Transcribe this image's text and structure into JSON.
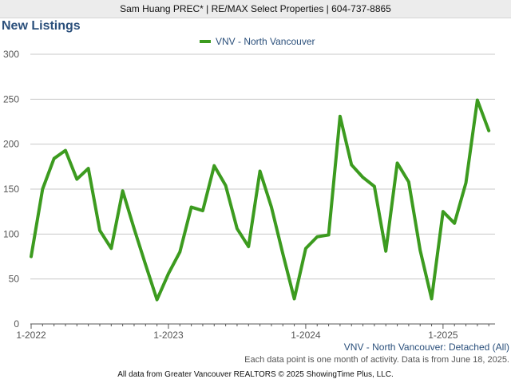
{
  "header": {
    "agent_line": "Sam Huang PREC* | RE/MAX Select Properties | 604-737-8865"
  },
  "chart_data": {
    "type": "line",
    "title": "New Listings",
    "series": [
      {
        "name": "VNV - North Vancouver",
        "color": "#3c9b1f",
        "values": [
          75,
          150,
          184,
          193,
          161,
          173,
          104,
          84,
          148,
          106,
          66,
          27,
          56,
          80,
          130,
          126,
          176,
          154,
          106,
          86,
          170,
          130,
          78,
          28,
          84,
          97,
          99,
          231,
          177,
          163,
          153,
          81,
          179,
          158,
          82,
          28,
          125,
          112,
          157,
          249,
          215
        ]
      }
    ],
    "x_start_label": "1-2022",
    "x_ticks": [
      {
        "index": 0,
        "label": "1-2022"
      },
      {
        "index": 12,
        "label": "1-2023"
      },
      {
        "index": 24,
        "label": "1-2024"
      },
      {
        "index": 36,
        "label": "1-2025"
      }
    ],
    "ylim": [
      0,
      300
    ],
    "y_ticks": [
      0,
      50,
      100,
      150,
      200,
      250,
      300
    ],
    "grid": true,
    "legend_position": "top"
  },
  "chart_subtitle": "VNV - North Vancouver: Detached (All)",
  "data_note": "Each data point is one month of activity. Data is from June 18, 2025.",
  "footer": "All data from Greater Vancouver REALTORS © 2025 ShowingTime Plus, LLC."
}
